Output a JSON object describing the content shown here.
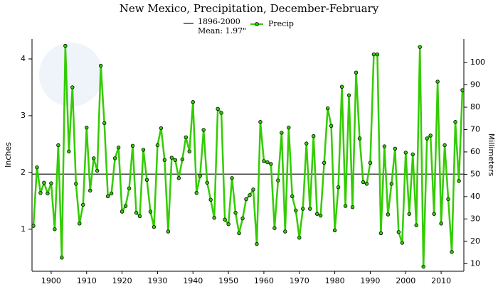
{
  "chart_data": {
    "type": "line",
    "title": "New Mexico, Precipitation, December-February",
    "y_label": "Inches",
    "y2_label": "Millimeters",
    "mean": {
      "value": 1.97,
      "label_lines": [
        "1896-2000",
        "Mean: 1.97\""
      ],
      "color": "#444444"
    },
    "x": [
      1895,
      1896,
      1897,
      1898,
      1899,
      1900,
      1901,
      1902,
      1903,
      1904,
      1905,
      1906,
      1907,
      1908,
      1909,
      1910,
      1911,
      1912,
      1913,
      1914,
      1915,
      1916,
      1917,
      1918,
      1919,
      1920,
      1921,
      1922,
      1923,
      1924,
      1925,
      1926,
      1927,
      1928,
      1929,
      1930,
      1931,
      1932,
      1933,
      1934,
      1935,
      1936,
      1937,
      1938,
      1939,
      1940,
      1941,
      1942,
      1943,
      1944,
      1945,
      1946,
      1947,
      1948,
      1949,
      1950,
      1951,
      1952,
      1953,
      1954,
      1955,
      1956,
      1957,
      1958,
      1959,
      1960,
      1961,
      1962,
      1963,
      1964,
      1965,
      1966,
      1967,
      1968,
      1969,
      1970,
      1971,
      1972,
      1973,
      1974,
      1975,
      1976,
      1977,
      1978,
      1979,
      1980,
      1981,
      1982,
      1983,
      1984,
      1985,
      1986,
      1987,
      1988,
      1989,
      1990,
      1991,
      1992,
      1993,
      1994,
      1995,
      1996,
      1997,
      1998,
      1999,
      2000,
      2001,
      2002,
      2003,
      2004,
      2005,
      2006,
      2007,
      2008,
      2009,
      2010,
      2011,
      2012,
      2013,
      2014,
      2015,
      2016
    ],
    "series": [
      {
        "name": "Precip",
        "color": "#33cc00",
        "values": [
          1.06,
          2.09,
          1.64,
          1.82,
          1.63,
          1.81,
          1.0,
          2.48,
          0.5,
          4.23,
          2.37,
          3.5,
          1.8,
          1.1,
          1.43,
          2.79,
          1.68,
          2.25,
          2.03,
          3.88,
          2.87,
          1.58,
          1.63,
          2.25,
          2.44,
          1.31,
          1.41,
          1.72,
          2.47,
          1.29,
          1.23,
          2.4,
          1.87,
          1.31,
          1.04,
          2.48,
          2.78,
          2.22,
          0.96,
          2.26,
          2.22,
          1.9,
          2.23,
          2.62,
          2.37,
          3.24,
          1.64,
          1.94,
          2.75,
          1.82,
          1.52,
          1.2,
          3.12,
          3.05,
          1.17,
          1.09,
          1.9,
          1.29,
          0.93,
          1.19,
          1.53,
          1.6,
          1.7,
          0.74,
          2.89,
          2.2,
          2.18,
          2.15,
          1.02,
          1.86,
          2.7,
          0.96,
          2.79,
          1.58,
          1.33,
          0.85,
          1.36,
          2.51,
          1.36,
          2.64,
          1.27,
          1.24,
          2.17,
          3.13,
          2.82,
          0.98,
          1.74,
          3.51,
          1.41,
          3.36,
          1.39,
          3.76,
          2.6,
          1.83,
          1.8,
          2.17,
          4.08,
          4.08,
          0.93,
          2.46,
          1.26,
          1.8,
          2.42,
          0.95,
          0.76,
          2.35,
          1.27,
          2.32,
          1.07,
          4.21,
          0.34,
          2.6,
          2.65,
          1.27,
          3.6,
          1.1,
          2.48,
          1.53,
          0.6,
          2.89,
          1.85,
          3.45
        ]
      }
    ],
    "xlim": [
      1894.6,
      2016.4
    ],
    "xticks": [
      1900,
      1910,
      1920,
      1930,
      1940,
      1950,
      1960,
      1970,
      1980,
      1990,
      2000,
      2010
    ],
    "ylim": [
      0.26,
      4.35
    ],
    "yticks": [
      1,
      2,
      3,
      4
    ],
    "y2lim": [
      6.6,
      110.5
    ],
    "y2ticks": [
      10,
      20,
      30,
      40,
      50,
      60,
      70,
      80,
      90,
      100
    ]
  }
}
